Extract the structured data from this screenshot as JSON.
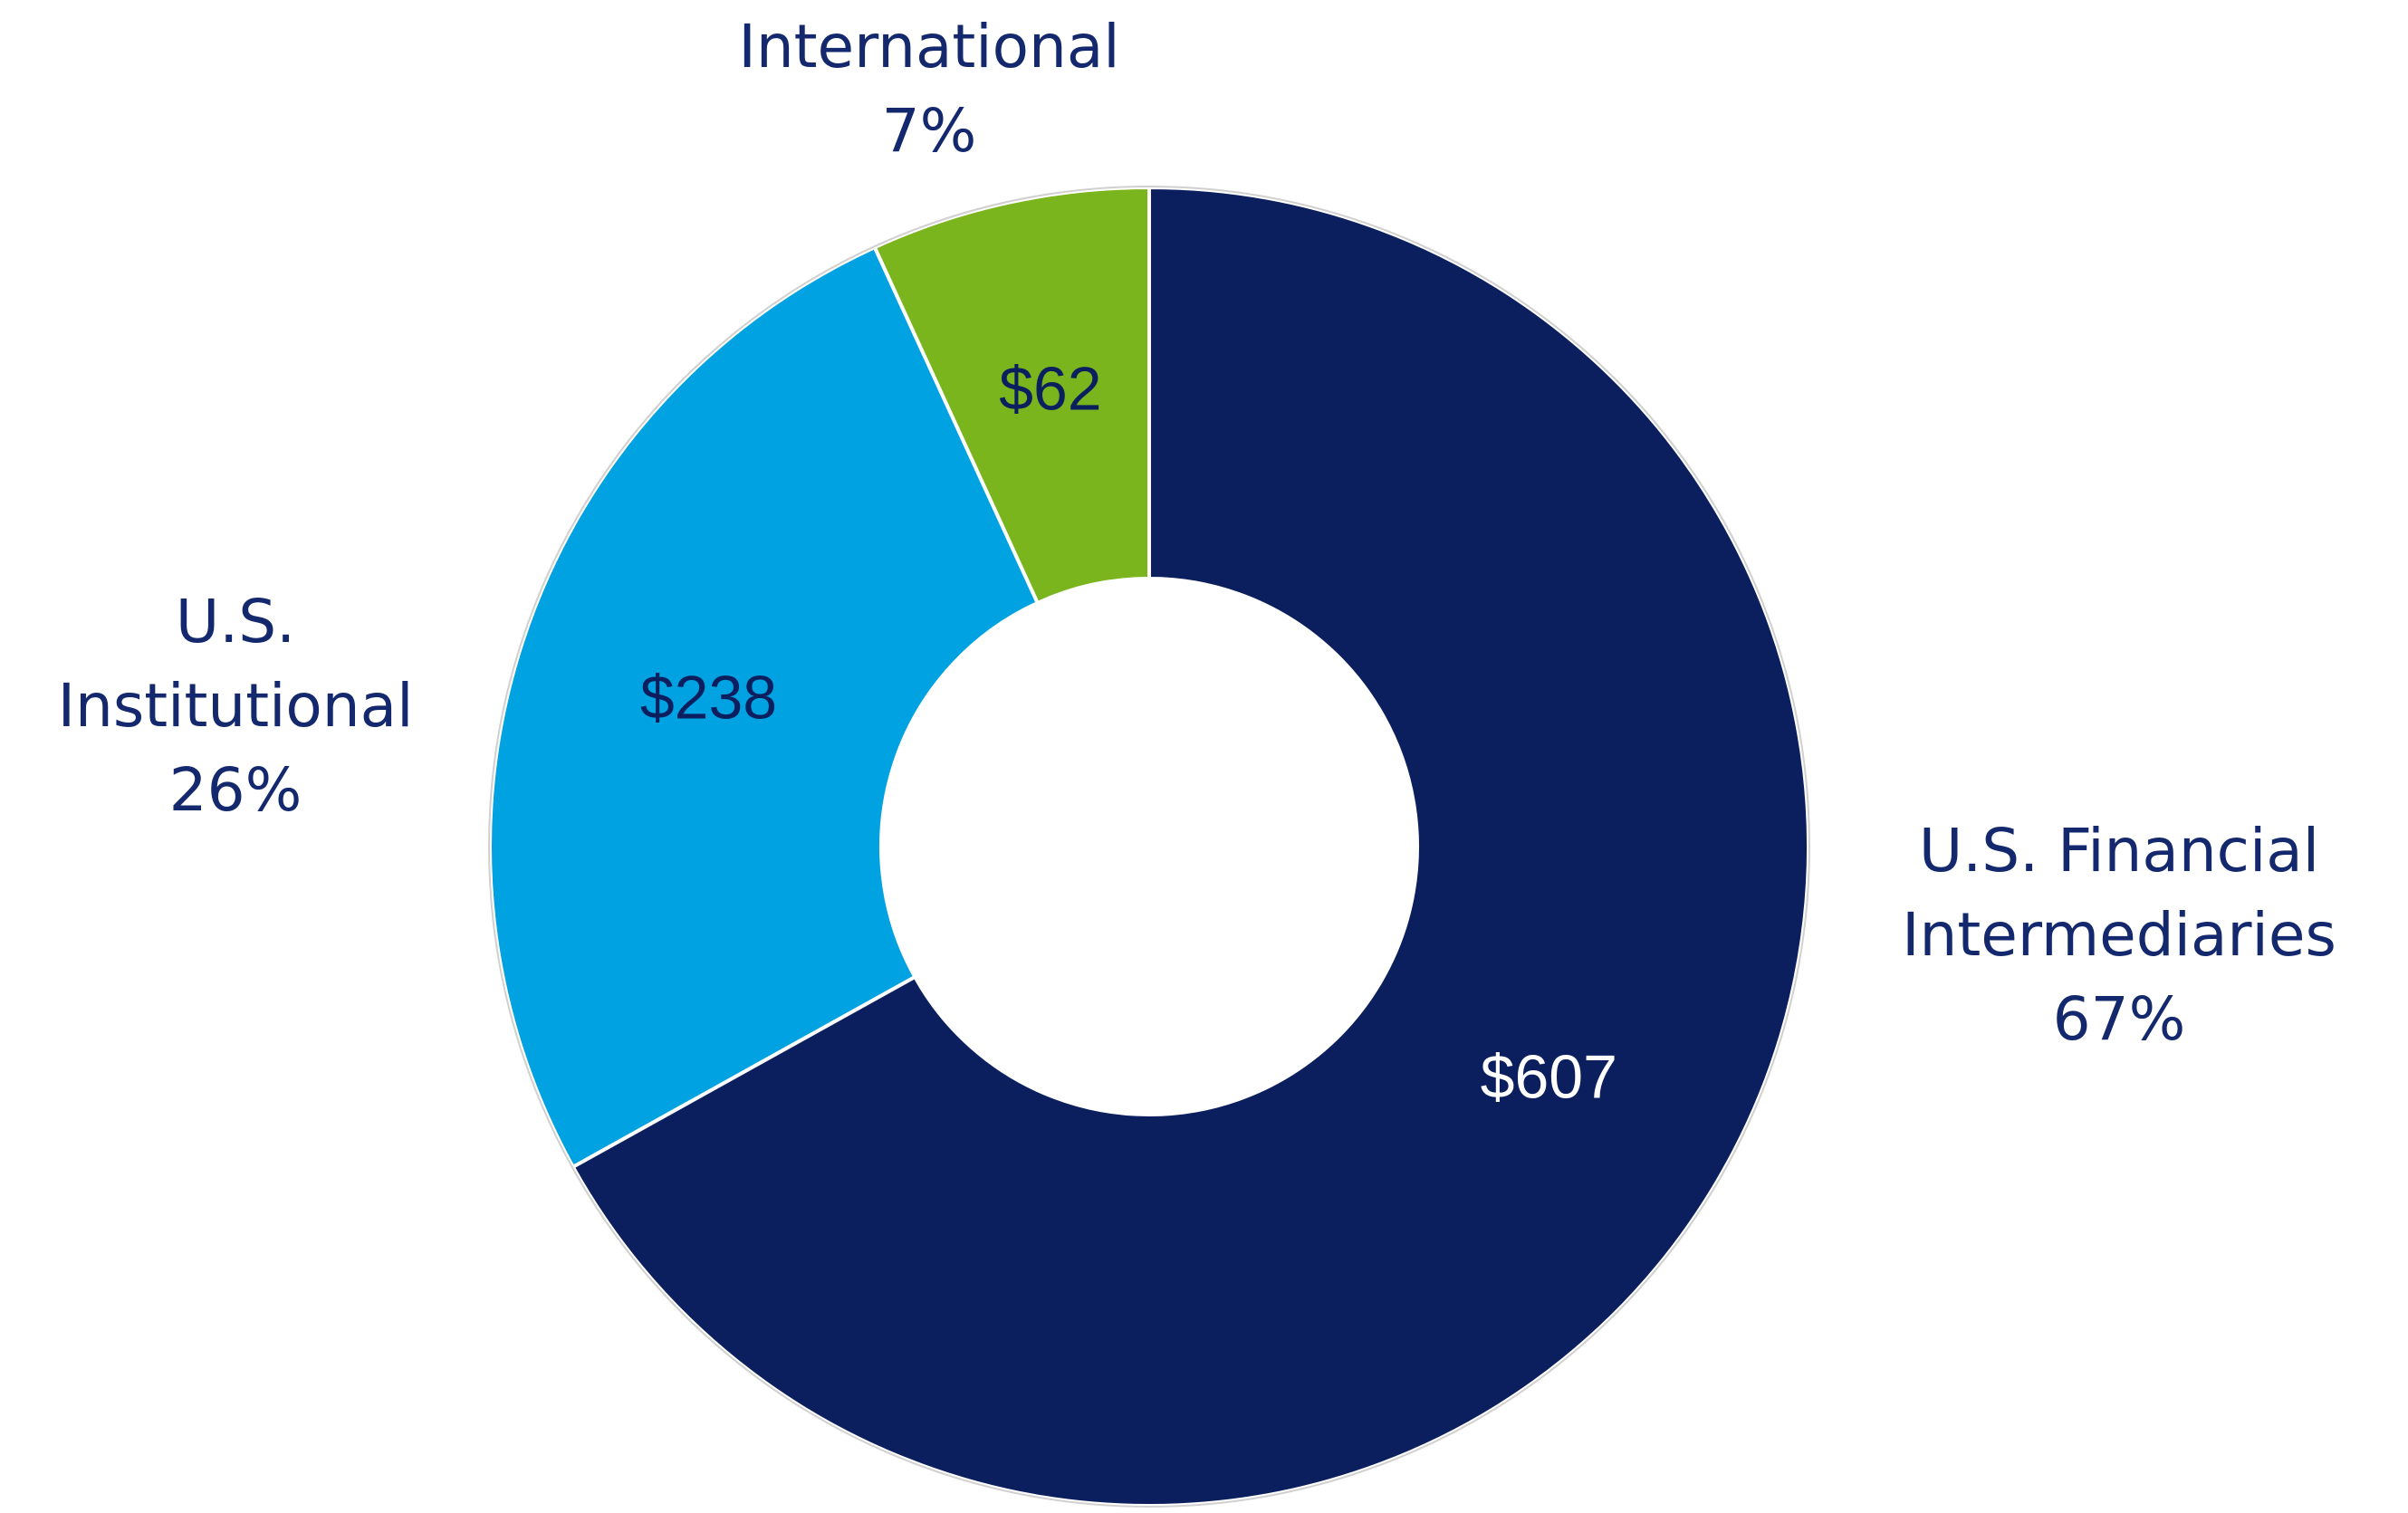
{
  "chart_data": {
    "type": "donut",
    "categories": [
      "U.S. Financial Intermediaries",
      "U.S. Institutional",
      "International"
    ],
    "values": [
      607,
      238,
      62
    ],
    "value_labels": [
      "$607",
      "$238",
      "$62"
    ],
    "percents": [
      67,
      26,
      7
    ],
    "percent_labels": [
      "67%",
      "26%",
      "7%"
    ],
    "colors": [
      "#0b1f5f",
      "#00a2e1",
      "#7ab51d"
    ],
    "value_label_colors": [
      "#ffffff",
      "#0b1f5f",
      "#0b1f5f"
    ]
  }
}
